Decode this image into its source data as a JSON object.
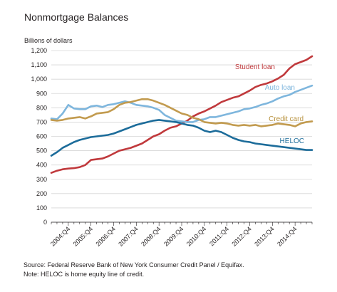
{
  "title": "Nonmortgage Balances",
  "source": "Source: Federal Reserve Bank of New York Consumer Credit Panel / Equifax.",
  "note": "Note: HELOC is home equity line of credit.",
  "chart_data": {
    "type": "line",
    "title": "Nonmortgage Balances",
    "ylabel": "Billions of dollars",
    "xlabel": "",
    "ylim": [
      0,
      1200
    ],
    "yticks": [
      0,
      100,
      200,
      300,
      400,
      500,
      600,
      700,
      800,
      900,
      1000,
      1100,
      1200
    ],
    "ytick_labels": [
      "0",
      "100",
      "200",
      "300",
      "400",
      "500",
      "600",
      "700",
      "800",
      "900",
      "1,000",
      "1,100",
      "1,200"
    ],
    "x_tick_labels": [
      "2004:Q4",
      "2005:Q4",
      "2006:Q4",
      "2007:Q4",
      "2008:Q4",
      "2009:Q4",
      "2010:Q4",
      "2011:Q4",
      "2012:Q4",
      "2013:Q4",
      "2014:Q4"
    ],
    "x_start": "2004:Q1",
    "x_end": "2014:Q4",
    "grid": "horizontal",
    "legend": "direct labels",
    "series": [
      {
        "name": "Student loan",
        "color": "#c0393c",
        "label_color": "#c0393c",
        "values": [
          345,
          360,
          370,
          375,
          378,
          385,
          400,
          435,
          440,
          445,
          460,
          480,
          500,
          510,
          520,
          535,
          550,
          575,
          600,
          615,
          640,
          660,
          670,
          690,
          710,
          740,
          760,
          775,
          795,
          815,
          840,
          855,
          870,
          880,
          900,
          920,
          945,
          960,
          970,
          985,
          1005,
          1030,
          1075,
          1105,
          1120,
          1135,
          1160
        ]
      },
      {
        "name": "Auto loan",
        "color": "#7eb6dd",
        "label_color": "#7eb6dd",
        "values": [
          725,
          720,
          760,
          820,
          795,
          790,
          790,
          810,
          815,
          805,
          820,
          825,
          835,
          845,
          835,
          820,
          815,
          810,
          800,
          785,
          750,
          730,
          710,
          705,
          700,
          700,
          715,
          720,
          735,
          735,
          745,
          755,
          765,
          775,
          790,
          795,
          805,
          820,
          830,
          845,
          865,
          880,
          890,
          910,
          925,
          940,
          955
        ]
      },
      {
        "name": "Credit card",
        "color": "#c29b4f",
        "label_color": "#b8923e",
        "values": [
          715,
          710,
          715,
          725,
          730,
          735,
          725,
          740,
          760,
          765,
          770,
          790,
          820,
          835,
          840,
          850,
          860,
          860,
          850,
          835,
          820,
          800,
          780,
          760,
          750,
          730,
          720,
          700,
          695,
          690,
          695,
          690,
          680,
          675,
          680,
          675,
          680,
          670,
          675,
          680,
          690,
          685,
          680,
          670,
          690,
          700,
          705
        ]
      },
      {
        "name": "HELOC",
        "color": "#1c6c9a",
        "label_color": "#1c6c9a",
        "values": [
          465,
          490,
          520,
          540,
          560,
          575,
          585,
          595,
          600,
          605,
          610,
          620,
          635,
          650,
          665,
          680,
          690,
          700,
          710,
          715,
          710,
          705,
          700,
          690,
          680,
          675,
          660,
          640,
          630,
          640,
          630,
          610,
          590,
          575,
          565,
          560,
          550,
          545,
          540,
          535,
          530,
          525,
          520,
          515,
          510,
          505,
          505
        ]
      }
    ]
  }
}
